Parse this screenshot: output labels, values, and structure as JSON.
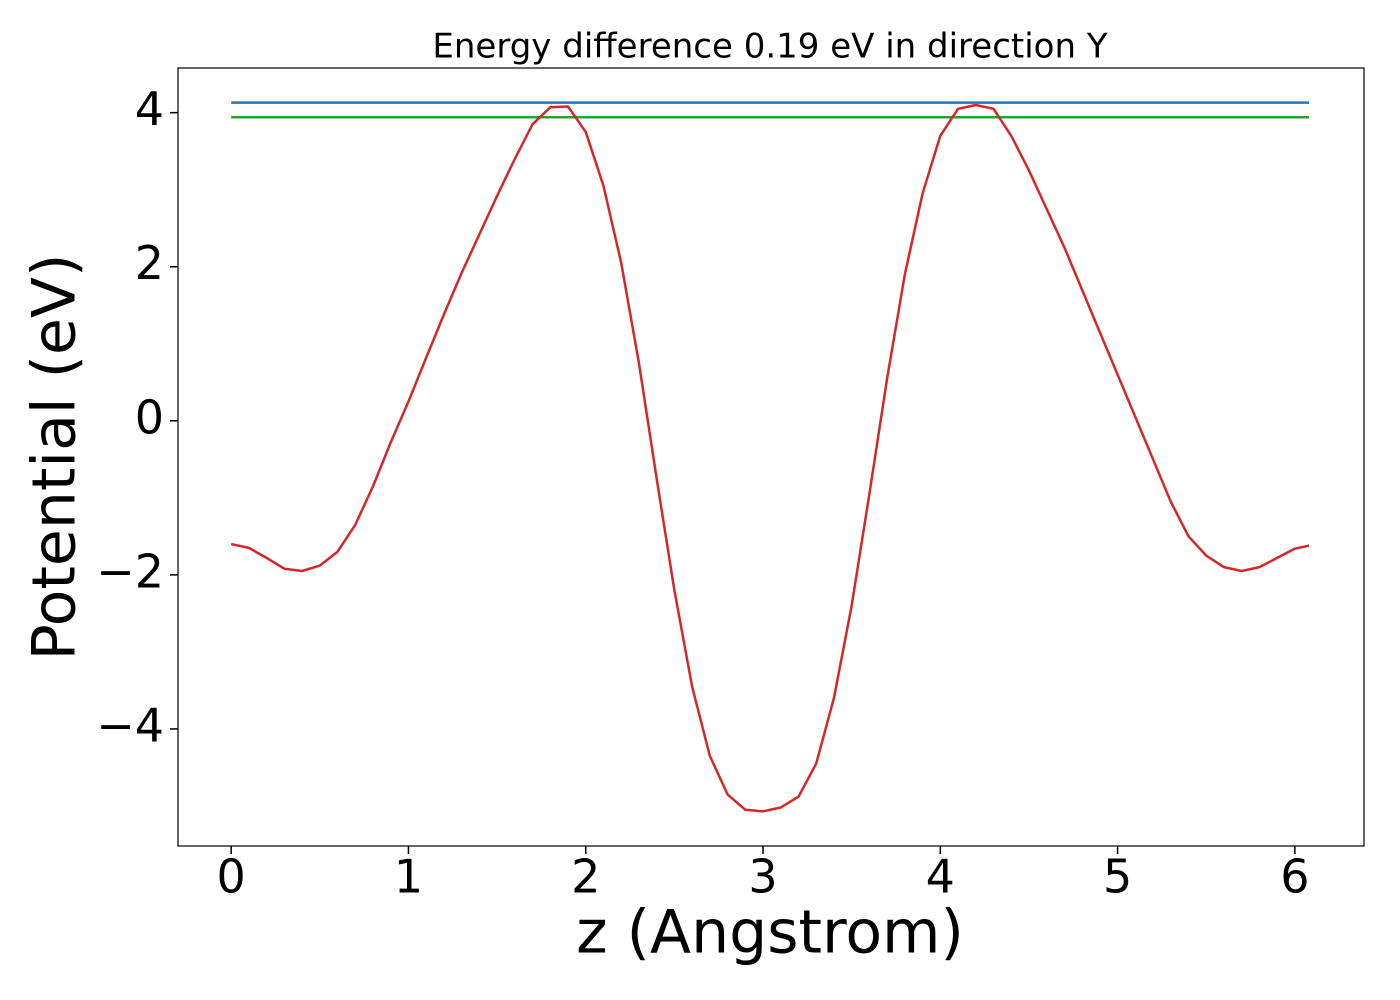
{
  "chart_data": {
    "type": "line",
    "title": "Energy difference 0.19 eV in direction Y",
    "xlabel": "z (Angstrom)",
    "ylabel": "Potential (eV)",
    "xlim": [
      -0.3,
      6.39
    ],
    "ylim": [
      -5.52,
      4.58
    ],
    "xticks": [
      0,
      1,
      2,
      3,
      4,
      5,
      6
    ],
    "yticks": [
      {
        "value": -4,
        "label": "−4"
      },
      {
        "value": -2,
        "label": "−2"
      },
      0,
      2,
      4
    ],
    "grid": false,
    "series": [
      {
        "color": "#1f77b4",
        "x": [
          0,
          6.08
        ],
        "values": [
          4.13,
          4.13
        ]
      },
      {
        "color": "#2ca02c",
        "x": [
          0,
          6.08
        ],
        "values": [
          3.94,
          3.94
        ]
      },
      {
        "color": "#d62728",
        "x": [
          0,
          0.1,
          0.2,
          0.3,
          0.4,
          0.5,
          0.6,
          0.7,
          0.8,
          0.9,
          1.0,
          1.1,
          1.2,
          1.3,
          1.4,
          1.5,
          1.6,
          1.7,
          1.8,
          1.9,
          2.0,
          2.1,
          2.2,
          2.3,
          2.4,
          2.5,
          2.6,
          2.7,
          2.8,
          2.9,
          3.0,
          3.1,
          3.2,
          3.3,
          3.4,
          3.5,
          3.6,
          3.7,
          3.8,
          3.9,
          4.0,
          4.1,
          4.2,
          4.3,
          4.4,
          4.5,
          4.6,
          4.7,
          4.8,
          4.9,
          5.0,
          5.1,
          5.2,
          5.3,
          5.4,
          5.5,
          5.6,
          5.7,
          5.8,
          5.9,
          6.0,
          6.08
        ],
        "values": [
          -1.6,
          -1.65,
          -1.78,
          -1.92,
          -1.95,
          -1.88,
          -1.7,
          -1.35,
          -0.85,
          -0.28,
          0.25,
          0.82,
          1.38,
          1.92,
          2.42,
          2.92,
          3.4,
          3.85,
          4.07,
          4.08,
          3.75,
          3.05,
          2.05,
          0.75,
          -0.75,
          -2.2,
          -3.45,
          -4.35,
          -4.85,
          -5.05,
          -5.07,
          -5.02,
          -4.88,
          -4.45,
          -3.6,
          -2.4,
          -0.95,
          0.55,
          1.9,
          2.95,
          3.7,
          4.05,
          4.1,
          4.05,
          3.7,
          3.25,
          2.75,
          2.25,
          1.7,
          1.15,
          0.6,
          0.05,
          -0.5,
          -1.05,
          -1.5,
          -1.75,
          -1.9,
          -1.95,
          -1.9,
          -1.78,
          -1.66,
          -1.62
        ]
      }
    ]
  }
}
